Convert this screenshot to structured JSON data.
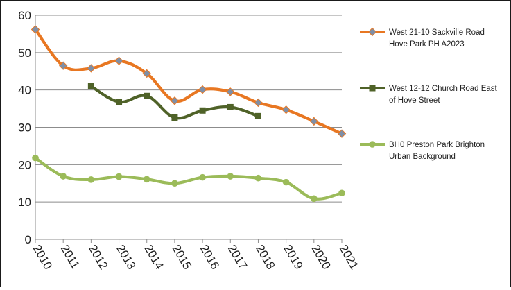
{
  "chart_data": {
    "type": "line",
    "title": "",
    "xlabel": "",
    "ylabel": "",
    "categories": [
      "2010",
      "2011",
      "2012",
      "2013",
      "2014",
      "2015",
      "2016",
      "2017",
      "2018",
      "2019",
      "2020",
      "2021"
    ],
    "ylim": [
      0,
      60
    ],
    "yticks": [
      0,
      10,
      20,
      30,
      40,
      50,
      60
    ],
    "grid": "horizontal",
    "smoothed": true,
    "legend_position": "right",
    "series": [
      {
        "name": "West 21-10 Sackville Road Hove Park PH A2023",
        "legend_lines": [
          "West 21-10 Sackville Road",
          "Hove Park PH A2023"
        ],
        "color": "#E87722",
        "marker": "diamond",
        "marker_color": "#7F8FA6",
        "values": [
          56.2,
          46.5,
          45.8,
          47.8,
          44.4,
          37.1,
          40.1,
          39.5,
          36.6,
          34.7,
          31.6,
          28.3
        ]
      },
      {
        "name": "West 12-12 Church Road East of Hove Street",
        "legend_lines": [
          "West 12-12 Church Road East",
          "of Hove Street"
        ],
        "color": "#4F6228",
        "marker": "square",
        "marker_color": "#4F6228",
        "values": [
          null,
          null,
          41.0,
          36.8,
          38.4,
          32.6,
          34.5,
          35.4,
          33.0,
          null,
          null,
          null
        ]
      },
      {
        "name": "BH0 Preston Park Brighton Urban Background",
        "legend_lines": [
          "BH0 Preston Park Brighton",
          "Urban Background"
        ],
        "color": "#9BBB59",
        "marker": "circle",
        "marker_color": "#9BBB59",
        "values": [
          21.8,
          16.9,
          16.0,
          16.8,
          16.1,
          15.0,
          16.6,
          16.9,
          16.4,
          15.3,
          10.9,
          12.4
        ]
      }
    ]
  }
}
